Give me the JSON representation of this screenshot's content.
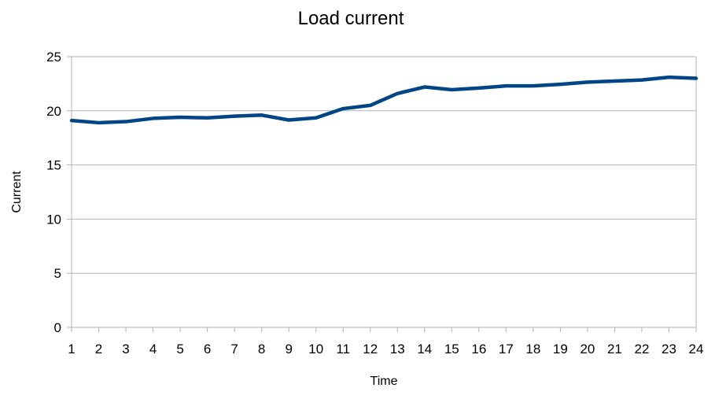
{
  "chart_data": {
    "type": "line",
    "title": "Load current",
    "xlabel": "Time",
    "ylabel": "Current",
    "categories": [
      "1",
      "2",
      "3",
      "4",
      "5",
      "6",
      "7",
      "8",
      "9",
      "10",
      "11",
      "12",
      "13",
      "14",
      "15",
      "16",
      "17",
      "18",
      "19",
      "20",
      "21",
      "22",
      "23",
      "24"
    ],
    "series": [
      {
        "values": [
          19.1,
          18.9,
          19.0,
          19.3,
          19.4,
          19.35,
          19.5,
          19.6,
          19.15,
          19.35,
          20.2,
          20.5,
          21.6,
          22.2,
          21.95,
          22.1,
          22.3,
          22.3,
          22.45,
          22.65,
          22.75,
          22.85,
          23.1,
          23.0
        ],
        "color": "#004586"
      }
    ],
    "ylim": [
      0,
      25
    ],
    "yticks": [
      0,
      5,
      10,
      15,
      20,
      25
    ],
    "grid": true,
    "legend": "none"
  }
}
